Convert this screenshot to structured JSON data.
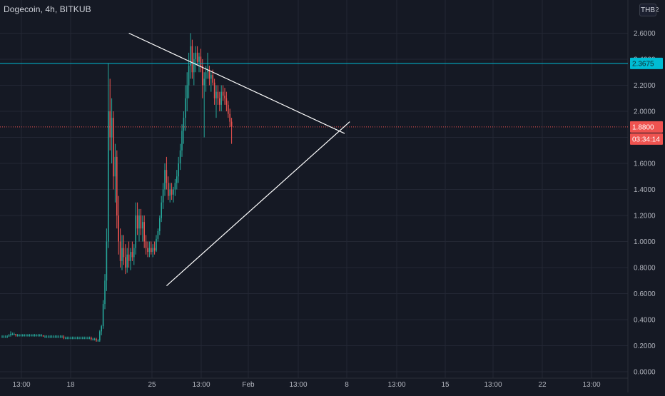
{
  "header": {
    "symbol_title": "Dogecoin, 4h, BITKUB",
    "currency": "THB",
    "top_tick_label": "2"
  },
  "colors": {
    "background": "#151924",
    "grid": "#232734",
    "up_candle": "#26a69a",
    "down_candle": "#ef5350",
    "trendline": "#ffffff",
    "horizontal_level": "#00bcd4",
    "price_line": "#ef5350",
    "axis_text": "#b2b5be"
  },
  "chart_data": {
    "type": "candlestick",
    "title": "Dogecoin, 4h, BITKUB",
    "y_axis": {
      "unit": "THB",
      "range": [
        0,
        2.9
      ],
      "tick_labels": [
        "0.0000",
        "0.2000",
        "0.4000",
        "0.6000",
        "0.8000",
        "1.0000",
        "1.2000",
        "1.4000",
        "1.6000",
        "1.8000",
        "2.0000",
        "2.2000",
        "2.4000",
        "2.6000"
      ]
    },
    "x_axis": {
      "tick_labels": [
        "13:00",
        "18",
        "25",
        "13:00",
        "Feb",
        "13:00",
        "8",
        "13:00",
        "15",
        "13:00",
        "22",
        "13:00"
      ]
    },
    "grid": true,
    "horizontal_level": {
      "value": 2.3675,
      "label": "2.3675"
    },
    "last_price": {
      "value": 1.88,
      "label": "1.8800",
      "countdown": "03:34:14"
    },
    "trendlines": [
      {
        "name": "upper",
        "from": {
          "x": 74,
          "y": 2.6
        },
        "to": {
          "x": 200,
          "y": 1.83
        }
      },
      {
        "name": "lower",
        "from": {
          "x": 96,
          "y": 0.66
        },
        "to": {
          "x": 203,
          "y": 1.92
        }
      }
    ],
    "x_index_range": [
      0,
      255
    ],
    "candles": [
      [
        0.27,
        0.28,
        0.26,
        0.27
      ],
      [
        0.27,
        0.28,
        0.26,
        0.27
      ],
      [
        0.27,
        0.28,
        0.26,
        0.27
      ],
      [
        0.27,
        0.28,
        0.26,
        0.27
      ],
      [
        0.27,
        0.29,
        0.27,
        0.28
      ],
      [
        0.28,
        0.31,
        0.27,
        0.29
      ],
      [
        0.29,
        0.3,
        0.28,
        0.29
      ],
      [
        0.29,
        0.3,
        0.28,
        0.29
      ],
      [
        0.29,
        0.29,
        0.27,
        0.28
      ],
      [
        0.28,
        0.29,
        0.27,
        0.28
      ],
      [
        0.28,
        0.29,
        0.27,
        0.28
      ],
      [
        0.28,
        0.29,
        0.27,
        0.28
      ],
      [
        0.28,
        0.29,
        0.27,
        0.28
      ],
      [
        0.28,
        0.29,
        0.27,
        0.28
      ],
      [
        0.28,
        0.29,
        0.27,
        0.28
      ],
      [
        0.28,
        0.29,
        0.27,
        0.28
      ],
      [
        0.28,
        0.29,
        0.27,
        0.28
      ],
      [
        0.28,
        0.29,
        0.27,
        0.28
      ],
      [
        0.28,
        0.29,
        0.27,
        0.28
      ],
      [
        0.28,
        0.29,
        0.27,
        0.28
      ],
      [
        0.28,
        0.29,
        0.27,
        0.28
      ],
      [
        0.28,
        0.29,
        0.27,
        0.28
      ],
      [
        0.28,
        0.29,
        0.27,
        0.28
      ],
      [
        0.28,
        0.29,
        0.27,
        0.28
      ],
      [
        0.28,
        0.28,
        0.27,
        0.27
      ],
      [
        0.27,
        0.28,
        0.26,
        0.27
      ],
      [
        0.27,
        0.28,
        0.26,
        0.27
      ],
      [
        0.27,
        0.28,
        0.26,
        0.27
      ],
      [
        0.27,
        0.28,
        0.26,
        0.27
      ],
      [
        0.27,
        0.28,
        0.26,
        0.27
      ],
      [
        0.27,
        0.28,
        0.26,
        0.27
      ],
      [
        0.27,
        0.28,
        0.26,
        0.27
      ],
      [
        0.27,
        0.28,
        0.26,
        0.27
      ],
      [
        0.27,
        0.28,
        0.26,
        0.27
      ],
      [
        0.27,
        0.28,
        0.26,
        0.27
      ],
      [
        0.27,
        0.28,
        0.26,
        0.27
      ],
      [
        0.27,
        0.28,
        0.25,
        0.26
      ],
      [
        0.26,
        0.27,
        0.25,
        0.26
      ],
      [
        0.26,
        0.27,
        0.25,
        0.26
      ],
      [
        0.26,
        0.27,
        0.25,
        0.26
      ],
      [
        0.26,
        0.27,
        0.25,
        0.26
      ],
      [
        0.26,
        0.27,
        0.25,
        0.26
      ],
      [
        0.26,
        0.27,
        0.25,
        0.26
      ],
      [
        0.26,
        0.27,
        0.25,
        0.26
      ],
      [
        0.26,
        0.27,
        0.25,
        0.26
      ],
      [
        0.26,
        0.27,
        0.25,
        0.26
      ],
      [
        0.26,
        0.27,
        0.25,
        0.26
      ],
      [
        0.26,
        0.27,
        0.25,
        0.26
      ],
      [
        0.26,
        0.27,
        0.25,
        0.26
      ],
      [
        0.26,
        0.27,
        0.25,
        0.26
      ],
      [
        0.26,
        0.27,
        0.25,
        0.26
      ],
      [
        0.26,
        0.27,
        0.25,
        0.26
      ],
      [
        0.26,
        0.27,
        0.24,
        0.25
      ],
      [
        0.25,
        0.26,
        0.24,
        0.25
      ],
      [
        0.25,
        0.26,
        0.24,
        0.25
      ],
      [
        0.25,
        0.26,
        0.23,
        0.24
      ],
      [
        0.24,
        0.25,
        0.23,
        0.24
      ],
      [
        0.24,
        0.32,
        0.23,
        0.31
      ],
      [
        0.31,
        0.36,
        0.28,
        0.35
      ],
      [
        0.35,
        0.55,
        0.33,
        0.52
      ],
      [
        0.52,
        0.75,
        0.48,
        0.7
      ],
      [
        0.7,
        1.1,
        0.62,
        1.0
      ],
      [
        1.0,
        2.37,
        0.95,
        2.0
      ],
      [
        2.0,
        2.25,
        1.7,
        1.8
      ],
      [
        1.8,
        2.1,
        1.6,
        1.95
      ],
      [
        1.95,
        2.0,
        1.4,
        1.5
      ],
      [
        1.5,
        1.75,
        1.3,
        1.65
      ],
      [
        1.65,
        1.7,
        1.1,
        1.2
      ],
      [
        1.2,
        1.35,
        0.9,
        1.0
      ],
      [
        1.0,
        1.1,
        0.8,
        0.85
      ],
      [
        0.85,
        1.05,
        0.78,
        0.95
      ],
      [
        0.95,
        1.05,
        0.82,
        0.88
      ],
      [
        0.88,
        0.98,
        0.75,
        0.8
      ],
      [
        0.8,
        0.95,
        0.76,
        0.9
      ],
      [
        0.9,
        1.0,
        0.8,
        0.85
      ],
      [
        0.85,
        0.95,
        0.78,
        0.92
      ],
      [
        0.92,
        1.0,
        0.85,
        0.88
      ],
      [
        0.88,
        0.98,
        0.82,
        0.95
      ],
      [
        0.95,
        1.3,
        0.9,
        1.2
      ],
      [
        1.2,
        1.3,
        1.05,
        1.1
      ],
      [
        1.1,
        1.25,
        1.0,
        1.2
      ],
      [
        1.2,
        1.25,
        1.05,
        1.1
      ],
      [
        1.1,
        1.2,
        1.0,
        1.15
      ],
      [
        1.15,
        1.2,
        0.95,
        1.0
      ],
      [
        1.0,
        1.05,
        0.9,
        0.95
      ],
      [
        0.95,
        1.0,
        0.88,
        0.92
      ],
      [
        0.92,
        1.0,
        0.88,
        0.95
      ],
      [
        0.95,
        1.0,
        0.9,
        0.92
      ],
      [
        0.92,
        0.98,
        0.88,
        0.95
      ],
      [
        0.95,
        1.0,
        0.9,
        0.93
      ],
      [
        0.93,
        1.05,
        0.92,
        1.02
      ],
      [
        1.02,
        1.1,
        1.0,
        1.08
      ],
      [
        1.08,
        1.2,
        1.05,
        1.18
      ],
      [
        1.18,
        1.35,
        1.15,
        1.3
      ],
      [
        1.3,
        1.45,
        1.25,
        1.4
      ],
      [
        1.4,
        1.6,
        1.35,
        1.55
      ],
      [
        1.55,
        1.65,
        1.4,
        1.45
      ],
      [
        1.45,
        1.5,
        1.32,
        1.35
      ],
      [
        1.35,
        1.45,
        1.3,
        1.4
      ],
      [
        1.4,
        1.45,
        1.32,
        1.36
      ],
      [
        1.36,
        1.42,
        1.3,
        1.4
      ],
      [
        1.4,
        1.48,
        1.35,
        1.45
      ],
      [
        1.45,
        1.55,
        1.4,
        1.5
      ],
      [
        1.5,
        1.65,
        1.45,
        1.6
      ],
      [
        1.6,
        1.75,
        1.55,
        1.7
      ],
      [
        1.7,
        1.9,
        1.65,
        1.85
      ],
      [
        1.85,
        2.0,
        1.75,
        1.95
      ],
      [
        1.95,
        2.2,
        1.85,
        2.1
      ],
      [
        2.1,
        2.3,
        2.0,
        2.2
      ],
      [
        2.2,
        2.45,
        2.1,
        2.35
      ],
      [
        2.35,
        2.6,
        2.25,
        2.5
      ],
      [
        2.5,
        2.55,
        2.25,
        2.3
      ],
      [
        2.3,
        2.45,
        2.2,
        2.4
      ],
      [
        2.4,
        2.5,
        2.3,
        2.45
      ],
      [
        2.45,
        2.5,
        2.35,
        2.38
      ],
      [
        2.38,
        2.45,
        2.3,
        2.42
      ],
      [
        2.42,
        2.48,
        2.3,
        2.35
      ],
      [
        2.35,
        2.4,
        2.1,
        2.2
      ],
      [
        2.2,
        2.3,
        1.8,
        2.25
      ],
      [
        2.25,
        2.35,
        2.15,
        2.3
      ],
      [
        2.3,
        2.45,
        2.25,
        2.32
      ],
      [
        2.32,
        2.35,
        2.2,
        2.25
      ],
      [
        2.25,
        2.3,
        2.15,
        2.28
      ],
      [
        2.28,
        2.32,
        2.2,
        2.22
      ],
      [
        2.22,
        2.25,
        2.05,
        2.1
      ],
      [
        2.1,
        2.2,
        1.95,
        2.15
      ],
      [
        2.15,
        2.2,
        2.05,
        2.1
      ],
      [
        2.1,
        2.15,
        2.0,
        2.05
      ],
      [
        2.05,
        2.2,
        2.0,
        2.15
      ],
      [
        2.15,
        2.2,
        2.08,
        2.12
      ],
      [
        2.12,
        2.18,
        2.05,
        2.1
      ],
      [
        2.1,
        2.15,
        2.0,
        2.05
      ],
      [
        2.05,
        2.08,
        1.95,
        1.98
      ],
      [
        1.98,
        2.02,
        1.88,
        1.92
      ],
      [
        1.92,
        1.95,
        1.75,
        1.88
      ]
    ]
  }
}
